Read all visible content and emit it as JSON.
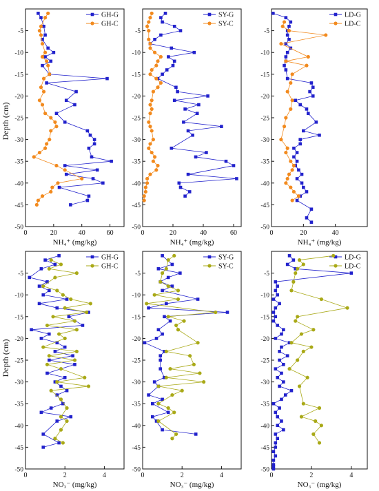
{
  "colors": {
    "G": "#2222cc",
    "C_nh4": "#f28a1e",
    "C_no3": "#a9a917",
    "axis": "#111111"
  },
  "shared_ylabel": "Depth (cm)",
  "chart_data": [
    {
      "type": "line",
      "panel": "GH-NH4",
      "xlabel": "NH₄⁺ (mg/kg)",
      "xlim": [
        0,
        70
      ],
      "xticks": [
        0,
        20,
        40,
        60
      ],
      "ylim": [
        -50,
        0
      ],
      "yticks": [
        -5,
        -10,
        -15,
        -20,
        -25,
        -30,
        -35,
        -40,
        -45,
        -50
      ],
      "legend": "top-right",
      "series": [
        {
          "name": "GH-G",
          "marker": "square",
          "color": "G",
          "x": [
            9,
            11,
            13,
            14,
            12,
            16,
            20,
            14,
            18,
            12,
            17,
            58,
            15,
            36,
            29,
            35,
            22,
            28,
            44,
            46,
            49,
            49,
            45,
            47,
            61,
            28,
            51,
            29,
            48,
            55,
            24,
            45,
            44,
            32
          ],
          "y": [
            -1,
            -2,
            -4,
            -6,
            -7,
            -9,
            -10,
            -11,
            -12,
            -13,
            -15,
            -16,
            -17,
            -19,
            -21,
            -22,
            -24,
            -26,
            -28,
            -29,
            -30,
            -31,
            -32,
            -34,
            -35,
            -36,
            -37,
            -38,
            -39,
            -40,
            -41,
            -43,
            -44,
            -45
          ]
        },
        {
          "name": "GH-C",
          "marker": "circle",
          "color": "C_nh4",
          "x": [
            16,
            14,
            11,
            10,
            11,
            12,
            14,
            12,
            15,
            16,
            17,
            13,
            11,
            13,
            10,
            12,
            14,
            18,
            21,
            22,
            18,
            17,
            15,
            14,
            10,
            6,
            22,
            28,
            40,
            23,
            19,
            18,
            12,
            9,
            8
          ],
          "y": [
            -1,
            -2,
            -4,
            -5,
            -6,
            -8,
            -10,
            -11,
            -12,
            -13,
            -15,
            -16,
            -18,
            -19,
            -21,
            -22,
            -24,
            -25,
            -26,
            -27,
            -28,
            -30,
            -31,
            -32,
            -33,
            -34,
            -36,
            -37,
            -39,
            -40,
            -41,
            -42,
            -43,
            -44,
            -45
          ]
        }
      ]
    },
    {
      "type": "line",
      "panel": "SY-NH4",
      "xlabel": "NH₄⁺ (mg/kg)",
      "xlim": [
        0,
        65
      ],
      "xticks": [
        0,
        20,
        40,
        60
      ],
      "ylim": [
        -50,
        0
      ],
      "yticks": [
        -5,
        -10,
        -15,
        -20,
        -25,
        -30,
        -35,
        -40,
        -45,
        -50
      ],
      "legend": "top-right",
      "series": [
        {
          "name": "SY-G",
          "marker": "square",
          "color": "G",
          "x": [
            15,
            12,
            13,
            21,
            25,
            12,
            8,
            5,
            19,
            34,
            17,
            21,
            20,
            16,
            13,
            10,
            22,
            23,
            43,
            21,
            37,
            28,
            36,
            27,
            52,
            30,
            33,
            19,
            42,
            35,
            55,
            60,
            30,
            62,
            24,
            25,
            31,
            28
          ],
          "y": [
            -1,
            -2,
            -3,
            -4,
            -5,
            -6,
            -7,
            -8,
            -9,
            -10,
            -11,
            -12,
            -13,
            -14,
            -15,
            -16,
            -18,
            -19,
            -20,
            -21,
            -22,
            -23,
            -24,
            -26,
            -27,
            -28,
            -29,
            -32,
            -33,
            -34,
            -35,
            -36,
            -38,
            -39,
            -40,
            -41,
            -42,
            -43
          ]
        },
        {
          "name": "SY-C",
          "marker": "circle",
          "color": "C_nh4",
          "x": [
            6,
            5,
            4,
            3,
            4,
            4,
            5,
            5,
            8,
            12,
            10,
            9,
            6,
            5,
            9,
            12,
            10,
            7,
            6,
            5,
            6,
            5,
            4,
            5,
            6,
            7,
            5,
            4,
            6,
            8,
            7,
            10,
            9,
            5,
            3,
            3,
            2,
            2,
            1,
            1
          ],
          "y": [
            -1,
            -2,
            -3,
            -4,
            -5,
            -7,
            -8,
            -9,
            -10,
            -11,
            -12,
            -13,
            -14,
            -15,
            -16,
            -17,
            -18,
            -19,
            -21,
            -22,
            -23,
            -24,
            -26,
            -27,
            -28,
            -30,
            -31,
            -32,
            -33,
            -34,
            -35,
            -36,
            -37,
            -38,
            -39,
            -40,
            -41,
            -42,
            -43,
            -44
          ]
        }
      ]
    },
    {
      "type": "line",
      "panel": "LD-NH4",
      "xlabel": "NH₄⁺ (mg/kg)",
      "xlim": [
        0,
        60
      ],
      "xticks": [
        0,
        20,
        40
      ],
      "ylim": [
        -50,
        0
      ],
      "yticks": [
        -5,
        -10,
        -15,
        -20,
        -25,
        -30,
        -35,
        -40,
        -45,
        -50
      ],
      "legend": "top-right",
      "series": [
        {
          "name": "LD-G",
          "marker": "square",
          "color": "G",
          "x": [
            1,
            9,
            12,
            11,
            10,
            10,
            11,
            9,
            12,
            10,
            9,
            9,
            8,
            9,
            10,
            25,
            26,
            24,
            26,
            15,
            18,
            22,
            23,
            28,
            20,
            30,
            18,
            18,
            14,
            16,
            14,
            16,
            15,
            17,
            19,
            16,
            19,
            20,
            22,
            18,
            16,
            25,
            22,
            25
          ],
          "y": [
            -1,
            -2,
            -3,
            -4,
            -5,
            -6,
            -7,
            -8,
            -9,
            -10,
            -11,
            -12,
            -13,
            -14,
            -16,
            -17,
            -18,
            -19,
            -20,
            -21,
            -22,
            -23,
            -24,
            -26,
            -28,
            -29,
            -30,
            -31,
            -32,
            -33,
            -34,
            -35,
            -36,
            -37,
            -38,
            -39,
            -40,
            -41,
            -42,
            -43,
            -44,
            -46,
            -48,
            -49
          ]
        },
        {
          "name": "LD-C",
          "marker": "circle",
          "color": "C_nh4",
          "x": [
            8,
            7,
            11,
            34,
            6,
            23,
            9,
            22,
            13,
            12,
            10,
            13,
            12,
            9,
            8,
            6,
            10,
            9,
            12,
            14,
            13,
            11,
            10,
            9,
            12,
            14,
            17,
            13
          ],
          "y": [
            -3,
            -4,
            -5,
            -6,
            -8,
            -11,
            -12,
            -13,
            -15,
            -17,
            -19,
            -21,
            -23,
            -25,
            -27,
            -30,
            -32,
            -33,
            -35,
            -36,
            -37,
            -38,
            -39,
            -40,
            -41,
            -42,
            -43,
            -44
          ]
        }
      ]
    },
    {
      "type": "line",
      "panel": "GH-NO3",
      "xlabel": "NO₃⁻ (mg/kg)",
      "xlim": [
        0,
        5
      ],
      "xticks": [
        0,
        2,
        4
      ],
      "ylim": [
        -50,
        0
      ],
      "yticks": [
        -5,
        -10,
        -15,
        -20,
        -25,
        -30,
        -35,
        -40,
        -45,
        -50
      ],
      "legend": "top-right",
      "series": [
        {
          "name": "GH-G",
          "marker": "square",
          "color": "G",
          "x": [
            1.7,
            1.0,
            1.5,
            0.8,
            0.2,
            1.1,
            0.7,
            1.2,
            0.9,
            2.1,
            0.7,
            1.6,
            3.2,
            2.2,
            2.9,
            0.3,
            1.2,
            0.8,
            1.6,
            2.0,
            1.5,
            2.4,
            1.2,
            2.5,
            1.1,
            2.0,
            1.5,
            1.8,
            2.1,
            1.6,
            1.9,
            1.3,
            0.8,
            2.3,
            1.6,
            0.9,
            1.7,
            0.9
          ],
          "y": [
            -1,
            -2,
            -3,
            -4,
            -6,
            -7,
            -8,
            -9,
            -10,
            -11,
            -12,
            -13,
            -14,
            -15,
            -17,
            -18,
            -19,
            -20,
            -21,
            -22,
            -23,
            -24,
            -25,
            -26,
            -28,
            -29,
            -30,
            -31,
            -32,
            -33,
            -35,
            -36,
            -37,
            -38,
            -39,
            -42,
            -44,
            -45
          ]
        },
        {
          "name": "GH-C",
          "marker": "circle",
          "color": "C_nh4",
          "color_key": "C_no3",
          "x": [
            1.3,
            1.8,
            1.2,
            2.6,
            1.5,
            0.9,
            1.6,
            1.9,
            2.3,
            3.3,
            2.0,
            3.1,
            1.4,
            2.5,
            1.1,
            2.6,
            1.7,
            2.0,
            0.9,
            2.6,
            1.2,
            2.5,
            1.1,
            1.8,
            3.0,
            1.6,
            3.2,
            1.3,
            1.8,
            2.1,
            1.8,
            2.1,
            1.8,
            1.5,
            1.9
          ],
          "y": [
            -2,
            -3,
            -4,
            -5,
            -6,
            -8,
            -9,
            -10,
            -11,
            -12,
            -13,
            -14,
            -15,
            -16,
            -17,
            -18,
            -19,
            -20,
            -22,
            -23,
            -24,
            -25,
            -26,
            -27,
            -29,
            -30,
            -31,
            -32,
            -34,
            -36,
            -38,
            -39,
            -41,
            -43,
            -44
          ]
        }
      ]
    },
    {
      "type": "line",
      "panel": "SY-NO3",
      "xlabel": "NO₃⁻ (mg/kg)",
      "xlim": [
        0,
        5
      ],
      "xticks": [
        0,
        2,
        4
      ],
      "ylim": [
        -50,
        0
      ],
      "yticks": [
        -5,
        -10,
        -15,
        -20,
        -25,
        -30,
        -35,
        -40,
        -45,
        -50
      ],
      "legend": "top-right",
      "series": [
        {
          "name": "SY-G",
          "marker": "square",
          "color": "G",
          "x": [
            1.0,
            1.5,
            0.8,
            1.9,
            1.3,
            0.9,
            1.5,
            1.0,
            2.8,
            1.2,
            0.3,
            4.3,
            1.1,
            1.4,
            0.8,
            1.0,
            0.7,
            0.1,
            1.1,
            0.9,
            0.9,
            0.9,
            1.1,
            0.6,
            0.8,
            0.3,
            1.0,
            0.5,
            1.3,
            0.5,
            0.7,
            1.0,
            2.7
          ],
          "y": [
            -1,
            -3,
            -4,
            -5,
            -6,
            -7,
            -8,
            -9,
            -11,
            -12,
            -13,
            -14,
            -15,
            -16,
            -18,
            -19,
            -20,
            -21,
            -23,
            -24,
            -25,
            -27,
            -29,
            -30,
            -31,
            -33,
            -34,
            -35,
            -37,
            -38,
            -39,
            -41,
            -42
          ]
        },
        {
          "name": "SY-C",
          "marker": "circle",
          "color": "C_no3",
          "x": [
            1.6,
            1.3,
            1.2,
            1.0,
            0.9,
            1.3,
            1.8,
            0.6,
            1.8,
            0.2,
            3.7,
            1.3,
            2.1,
            1.7,
            1.8,
            2.8,
            1.2,
            2.4,
            2.6,
            1.4,
            2.9,
            1.2,
            3.1,
            0.8,
            2.0,
            1.5,
            0.8,
            1.3,
            1.6,
            0.8,
            1.7,
            1.5
          ],
          "y": [
            -1,
            -2,
            -4,
            -5,
            -7,
            -8,
            -9,
            -10,
            -11,
            -12,
            -14,
            -15,
            -16,
            -17,
            -18,
            -21,
            -23,
            -24,
            -26,
            -27,
            -28,
            -29,
            -30,
            -31,
            -32,
            -33,
            -35,
            -36,
            -37,
            -39,
            -42,
            -43
          ]
        }
      ]
    },
    {
      "type": "line",
      "panel": "LD-NO3",
      "xlabel": "NO₃⁻ (mg/kg)",
      "xlim": [
        0,
        4.8
      ],
      "xticks": [
        0,
        2,
        4
      ],
      "ylim": [
        -50,
        0
      ],
      "yticks": [
        -5,
        -10,
        -15,
        -20,
        -25,
        -30,
        -35,
        -40,
        -45,
        -50
      ],
      "legend": "top-right",
      "series": [
        {
          "name": "LD-G",
          "marker": "square",
          "color": "G",
          "x": [
            0.9,
            1.1,
            0.8,
            1.2,
            4.0,
            0.2,
            0.3,
            0.2,
            0.3,
            0.1,
            0.4,
            0.2,
            0.1,
            0.2,
            0.1,
            0.3,
            0.6,
            0.5,
            0.2,
            0.9,
            0.5,
            0.4,
            0.8,
            0.4,
            0.6,
            0.2,
            0.5,
            0.3,
            0.6,
            0.4,
            1.0,
            0.7,
            0.5,
            0.1,
            0.4,
            0.2,
            0.3,
            0.5,
            0.3,
            0.6,
            0.2,
            0.3,
            0.2,
            0.2,
            0.1,
            0.2,
            0.1,
            0.1,
            0.1,
            0.1
          ],
          "y": [
            -1,
            -2,
            -3,
            -4,
            -5,
            -7,
            -8,
            -9,
            -10,
            -11,
            -12,
            -13,
            -14,
            -15,
            -16,
            -17,
            -18,
            -19,
            -20,
            -21,
            -22,
            -23,
            -24,
            -25,
            -26,
            -27,
            -28,
            -29,
            -30,
            -31,
            -32,
            -33,
            -34,
            -35,
            -36,
            -37,
            -38,
            -39,
            -40,
            -41,
            -42,
            -43,
            -44,
            -45,
            -46,
            -47,
            -48,
            -49,
            -49.5,
            -50
          ]
        },
        {
          "name": "LD-C",
          "marker": "circle",
          "color": "C_no3",
          "x": [
            3.1,
            1.4,
            1.6,
            1.3,
            1.2,
            1.1,
            1.0,
            2.5,
            3.8,
            1.3,
            1.2,
            2.1,
            1.5,
            1.0,
            2.0,
            1.6,
            1.3,
            0.9,
            1.8,
            1.4,
            1.6,
            2.4,
            1.5,
            2.2,
            2.5,
            2.1,
            2.4
          ],
          "y": [
            -1,
            -2,
            -3,
            -4,
            -5,
            -7,
            -9,
            -11,
            -13,
            -15,
            -16,
            -18,
            -19,
            -21,
            -22,
            -23,
            -25,
            -27,
            -29,
            -31,
            -35,
            -36,
            -38,
            -39,
            -40,
            -42,
            -44
          ]
        }
      ]
    }
  ]
}
